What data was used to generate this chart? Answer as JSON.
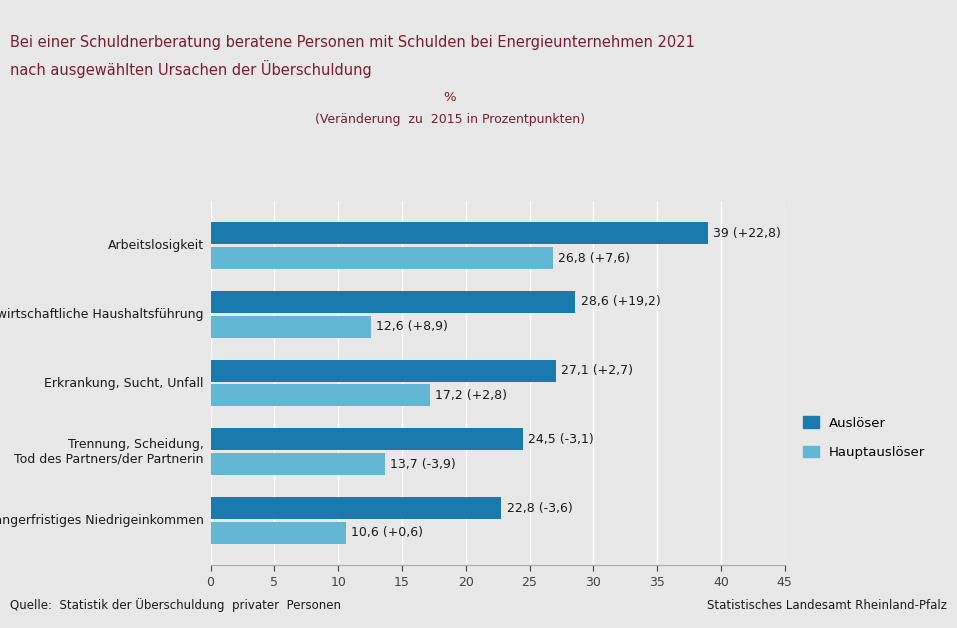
{
  "title_line1": "Bei einer Schuldnerberatung beratene Personen mit Schulden bei Energieunternehmen 2021",
  "title_line2": "nach ausgewählten Ursachen der Überschuldung",
  "subtitle_line1": "%",
  "subtitle_line2": "(Veränderung  zu  2015 in Prozentpunkten)",
  "categories": [
    "längerfristiges Niedrigeinkommen",
    "Trennung, Scheidung,\nTod des Partners/der Partnerin",
    "Erkrankung, Sucht, Unfall",
    "unwirtschaftliche Haushaltsführung",
    "Arbeitslosigkeit"
  ],
  "ausloeser_values": [
    22.8,
    24.5,
    27.1,
    28.6,
    39.0
  ],
  "hauptausloeser_values": [
    10.6,
    13.7,
    17.2,
    12.6,
    26.8
  ],
  "ausloeser_labels": [
    "22,8 (-3,6)",
    "24,5 (-3,1)",
    "27,1 (+2,7)",
    "28,6 (+19,2)",
    "39 (+22,8)"
  ],
  "hauptausloeser_labels": [
    "10,6 (+0,6)",
    "13,7 (-3,9)",
    "17,2 (+2,8)",
    "12,6 (+8,9)",
    "26,8 (+7,6)"
  ],
  "ausloeser_color": "#1a7aad",
  "hauptausloeser_color": "#62b8d4",
  "bar_height": 0.32,
  "bar_gap": 0.04,
  "xlim": [
    0,
    45
  ],
  "xticks": [
    0,
    5,
    10,
    15,
    20,
    25,
    30,
    35,
    40,
    45
  ],
  "legend_labels": [
    "Auslöser",
    "Hauptauslöser"
  ],
  "source_text": "Quelle:  Statistik der Überschuldung  privater  Personen",
  "credit_text": "Statistisches Landesamt Rheinland-Pfalz",
  "title_color": "#7b1c2e",
  "subtitle_color": "#7b1c2e",
  "background_color": "#e8e8e8",
  "plot_background": "#e8e8e8",
  "top_strip_color": "#7b1c2e",
  "label_fontsize": 9.0,
  "title_fontsize": 10.5,
  "category_fontsize": 9.0,
  "source_fontsize": 8.5
}
